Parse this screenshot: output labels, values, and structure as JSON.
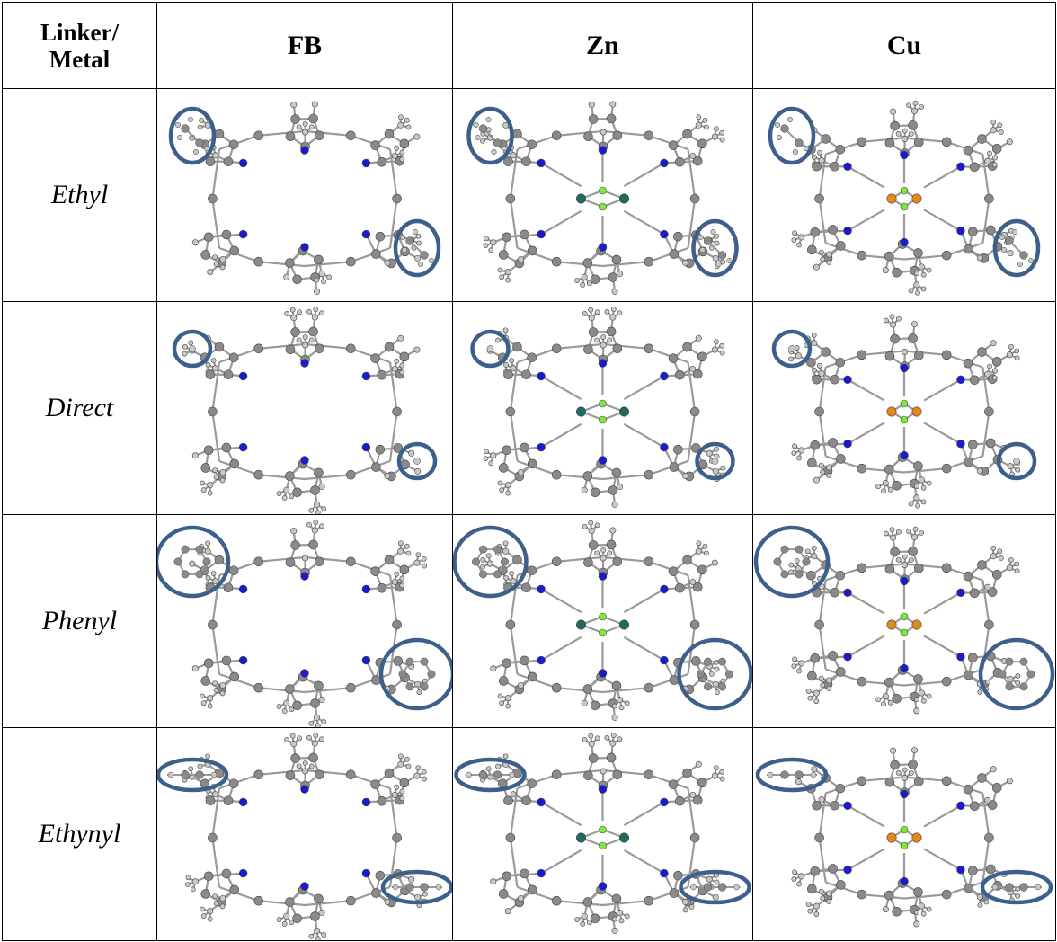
{
  "table": {
    "header": {
      "corner_line1": "Linker/",
      "corner_line2": "Metal",
      "columns": [
        "FB",
        "Zn",
        "Cu"
      ]
    },
    "rows": [
      {
        "label": "Ethyl",
        "marker": "ethyl",
        "circle_size": "small"
      },
      {
        "label": "Direct",
        "marker": "hydrogen",
        "circle_size": "tiny"
      },
      {
        "label": "Phenyl",
        "marker": "phenyl",
        "circle_size": "large"
      },
      {
        "label": "Ethynyl",
        "marker": "ethynyl",
        "circle_size": "flat-ellipse"
      }
    ],
    "metals": [
      {
        "name": "FB",
        "center_atoms": "none"
      },
      {
        "name": "Zn",
        "center_atoms": "dark-teal"
      },
      {
        "name": "Cu",
        "center_atoms": "orange"
      }
    ]
  },
  "colors": {
    "carbon": "#8a8a8a",
    "hydrogen": "#c8c8c8",
    "nitrogen": "#1a1ad0",
    "zinc": "#1d6b63",
    "copper": "#e08a1a",
    "fluorine": "#7ee83a",
    "highlight_circle": "#3d5f8c"
  }
}
